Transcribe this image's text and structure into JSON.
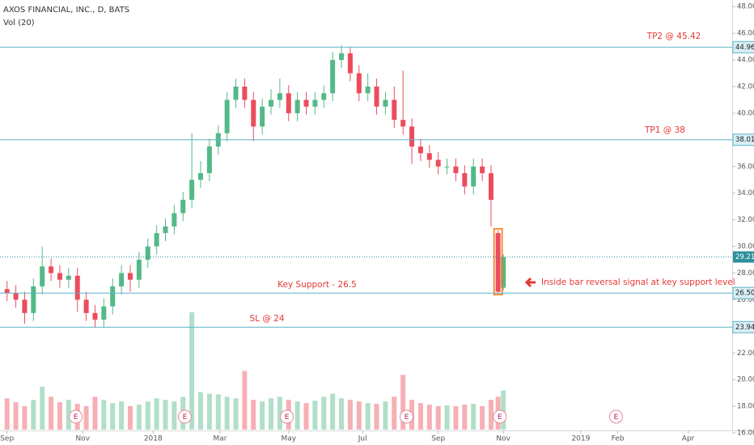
{
  "chart_data": {
    "type": "candlestick",
    "title": "AXOS FINANCIAL, INC., D, BATS",
    "indicator": "Vol (20)",
    "up_color": "#53b987",
    "down_color": "#eb4d5c",
    "level_color": "#5fb4c8",
    "annotation_color": "#e53935",
    "x": [
      0,
      5,
      10,
      15,
      20,
      25,
      30,
      35,
      40,
      45,
      50,
      55,
      60,
      65,
      70,
      75,
      80,
      85,
      90,
      95,
      100,
      105,
      110,
      115,
      120,
      125,
      130,
      135,
      140,
      145,
      150,
      155,
      160,
      165,
      170,
      175,
      180,
      185,
      190,
      195,
      200,
      205,
      210,
      215,
      220,
      225,
      230,
      235,
      240,
      245,
      250,
      255,
      260,
      265,
      270,
      275,
      279,
      282
    ],
    "open": [
      26.8,
      26.5,
      26,
      25,
      27,
      28.5,
      28,
      27.5,
      27.8,
      26,
      25,
      24.5,
      25.5,
      27,
      28,
      27.5,
      29,
      30,
      31,
      31.5,
      32.5,
      33.5,
      35,
      35.5,
      37.5,
      38.5,
      41,
      42,
      41,
      39,
      40.5,
      41,
      41.5,
      40,
      41,
      40.5,
      41,
      41.5,
      44,
      44.5,
      43,
      41.5,
      42,
      40.5,
      41,
      39.5,
      39,
      37.5,
      37,
      36.5,
      36,
      36,
      35.5,
      34.5,
      36,
      35.5,
      31,
      26.9
    ],
    "high": [
      27.4,
      27.1,
      26.6,
      27.6,
      30,
      29.1,
      28.6,
      28.4,
      28.4,
      26.6,
      25.6,
      26.1,
      27.6,
      28.6,
      28.6,
      29.6,
      30.6,
      31.6,
      32.1,
      33.1,
      34.1,
      38.5,
      36.4,
      38.1,
      39.1,
      41.6,
      42.6,
      42.6,
      41.6,
      41.1,
      41.8,
      42.6,
      42.1,
      41.6,
      41.6,
      41.6,
      42.1,
      44.6,
      45.1,
      45,
      43.6,
      43,
      42.6,
      41.6,
      42,
      43.2,
      39.6,
      38.1,
      37.6,
      37.1,
      36.6,
      36.6,
      36.1,
      36.6,
      36.6,
      36.1,
      31.2,
      29.4
    ],
    "low": [
      25.9,
      25.4,
      24.2,
      24.4,
      26.4,
      27.4,
      26.9,
      26.9,
      25.1,
      24.4,
      23.9,
      23.9,
      24.9,
      26.4,
      26.6,
      26.9,
      28.4,
      29.4,
      30.4,
      30.9,
      31.9,
      32.9,
      34.4,
      34.9,
      36.9,
      37.9,
      40.4,
      40.4,
      37.9,
      38.4,
      39.9,
      40.4,
      39.4,
      39.4,
      39.9,
      39.9,
      40.4,
      40.9,
      43.4,
      42.4,
      40.9,
      40.9,
      39.9,
      39.9,
      38.9,
      38.4,
      36.2,
      36.4,
      35.9,
      35.4,
      35.4,
      34.9,
      33.9,
      33.9,
      34.9,
      31.5,
      26.5,
      26.7
    ],
    "close": [
      26.5,
      26,
      25,
      27,
      28.5,
      28,
      27.5,
      27.8,
      26,
      25,
      24.5,
      25.5,
      27,
      28,
      27.5,
      29,
      30,
      31,
      31.5,
      32.5,
      33.5,
      35,
      35.5,
      37.5,
      38.5,
      41,
      42,
      41,
      39,
      40.5,
      41,
      41.5,
      40,
      41,
      40.5,
      41,
      41.5,
      44,
      44.5,
      43,
      41.5,
      42,
      40.5,
      41,
      39.5,
      39,
      37.5,
      37,
      36.5,
      36,
      36,
      35.5,
      34.5,
      36,
      35.5,
      33.5,
      26.6,
      29.2
    ],
    "volume": [
      400,
      350,
      300,
      380,
      550,
      420,
      350,
      380,
      330,
      300,
      420,
      380,
      340,
      360,
      300,
      320,
      360,
      400,
      380,
      360,
      420,
      1500,
      480,
      460,
      450,
      420,
      400,
      750,
      380,
      360,
      400,
      420,
      380,
      360,
      340,
      370,
      420,
      460,
      400,
      380,
      360,
      340,
      330,
      360,
      420,
      700,
      380,
      340,
      320,
      300,
      310,
      300,
      320,
      330,
      300,
      380,
      420,
      500
    ],
    "xlim": [
      -4,
      412
    ],
    "ylim": [
      15.7,
      48.5
    ],
    "xticks": [
      {
        "value": 0,
        "label": "Sep"
      },
      {
        "value": 43,
        "label": "Nov"
      },
      {
        "value": 83,
        "label": "2018"
      },
      {
        "value": 121,
        "label": "Mar"
      },
      {
        "value": 160,
        "label": "May"
      },
      {
        "value": 202,
        "label": "Jul"
      },
      {
        "value": 245,
        "label": "Sep"
      },
      {
        "value": 282,
        "label": "Nov"
      },
      {
        "value": 326,
        "label": "2019"
      },
      {
        "value": 347,
        "label": "Feb"
      },
      {
        "value": 387,
        "label": "Apr"
      }
    ],
    "yticks": [
      {
        "value": 16,
        "label": "16.00"
      },
      {
        "value": 18,
        "label": "18.00"
      },
      {
        "value": 20,
        "label": "20.00"
      },
      {
        "value": 22,
        "label": "22.00"
      },
      {
        "value": 24,
        "label": "24.00"
      },
      {
        "value": 26,
        "label": "26.00"
      },
      {
        "value": 28,
        "label": "28.00"
      },
      {
        "value": 30,
        "label": "30.00"
      },
      {
        "value": 32,
        "label": "32.00"
      },
      {
        "value": 34,
        "label": "34.00"
      },
      {
        "value": 36,
        "label": "36.00"
      },
      {
        "value": 38,
        "label": "38.00"
      },
      {
        "value": 40,
        "label": "40.00"
      },
      {
        "value": 42,
        "label": "42.00"
      },
      {
        "value": 44,
        "label": "44.00"
      },
      {
        "value": 46,
        "label": "46.00"
      },
      {
        "value": 48,
        "label": "48.00"
      }
    ],
    "levels": [
      {
        "value": 44.96,
        "label": "44.96"
      },
      {
        "value": 38.01,
        "label": "38.01"
      },
      {
        "value": 26.5,
        "label": "26.50"
      },
      {
        "value": 23.94,
        "label": "23.94"
      }
    ],
    "current_price": {
      "value": 29.21,
      "label": "29.21"
    },
    "annotations": [
      "TP2 @ 45.42",
      "TP1 @ 38",
      "Key Support - 26.5",
      "SL @ 24",
      "Inside bar reversal signal at key support level"
    ],
    "earnings": {
      "label": "E",
      "x": [
        39,
        101,
        159,
        227,
        280,
        346
      ]
    }
  }
}
